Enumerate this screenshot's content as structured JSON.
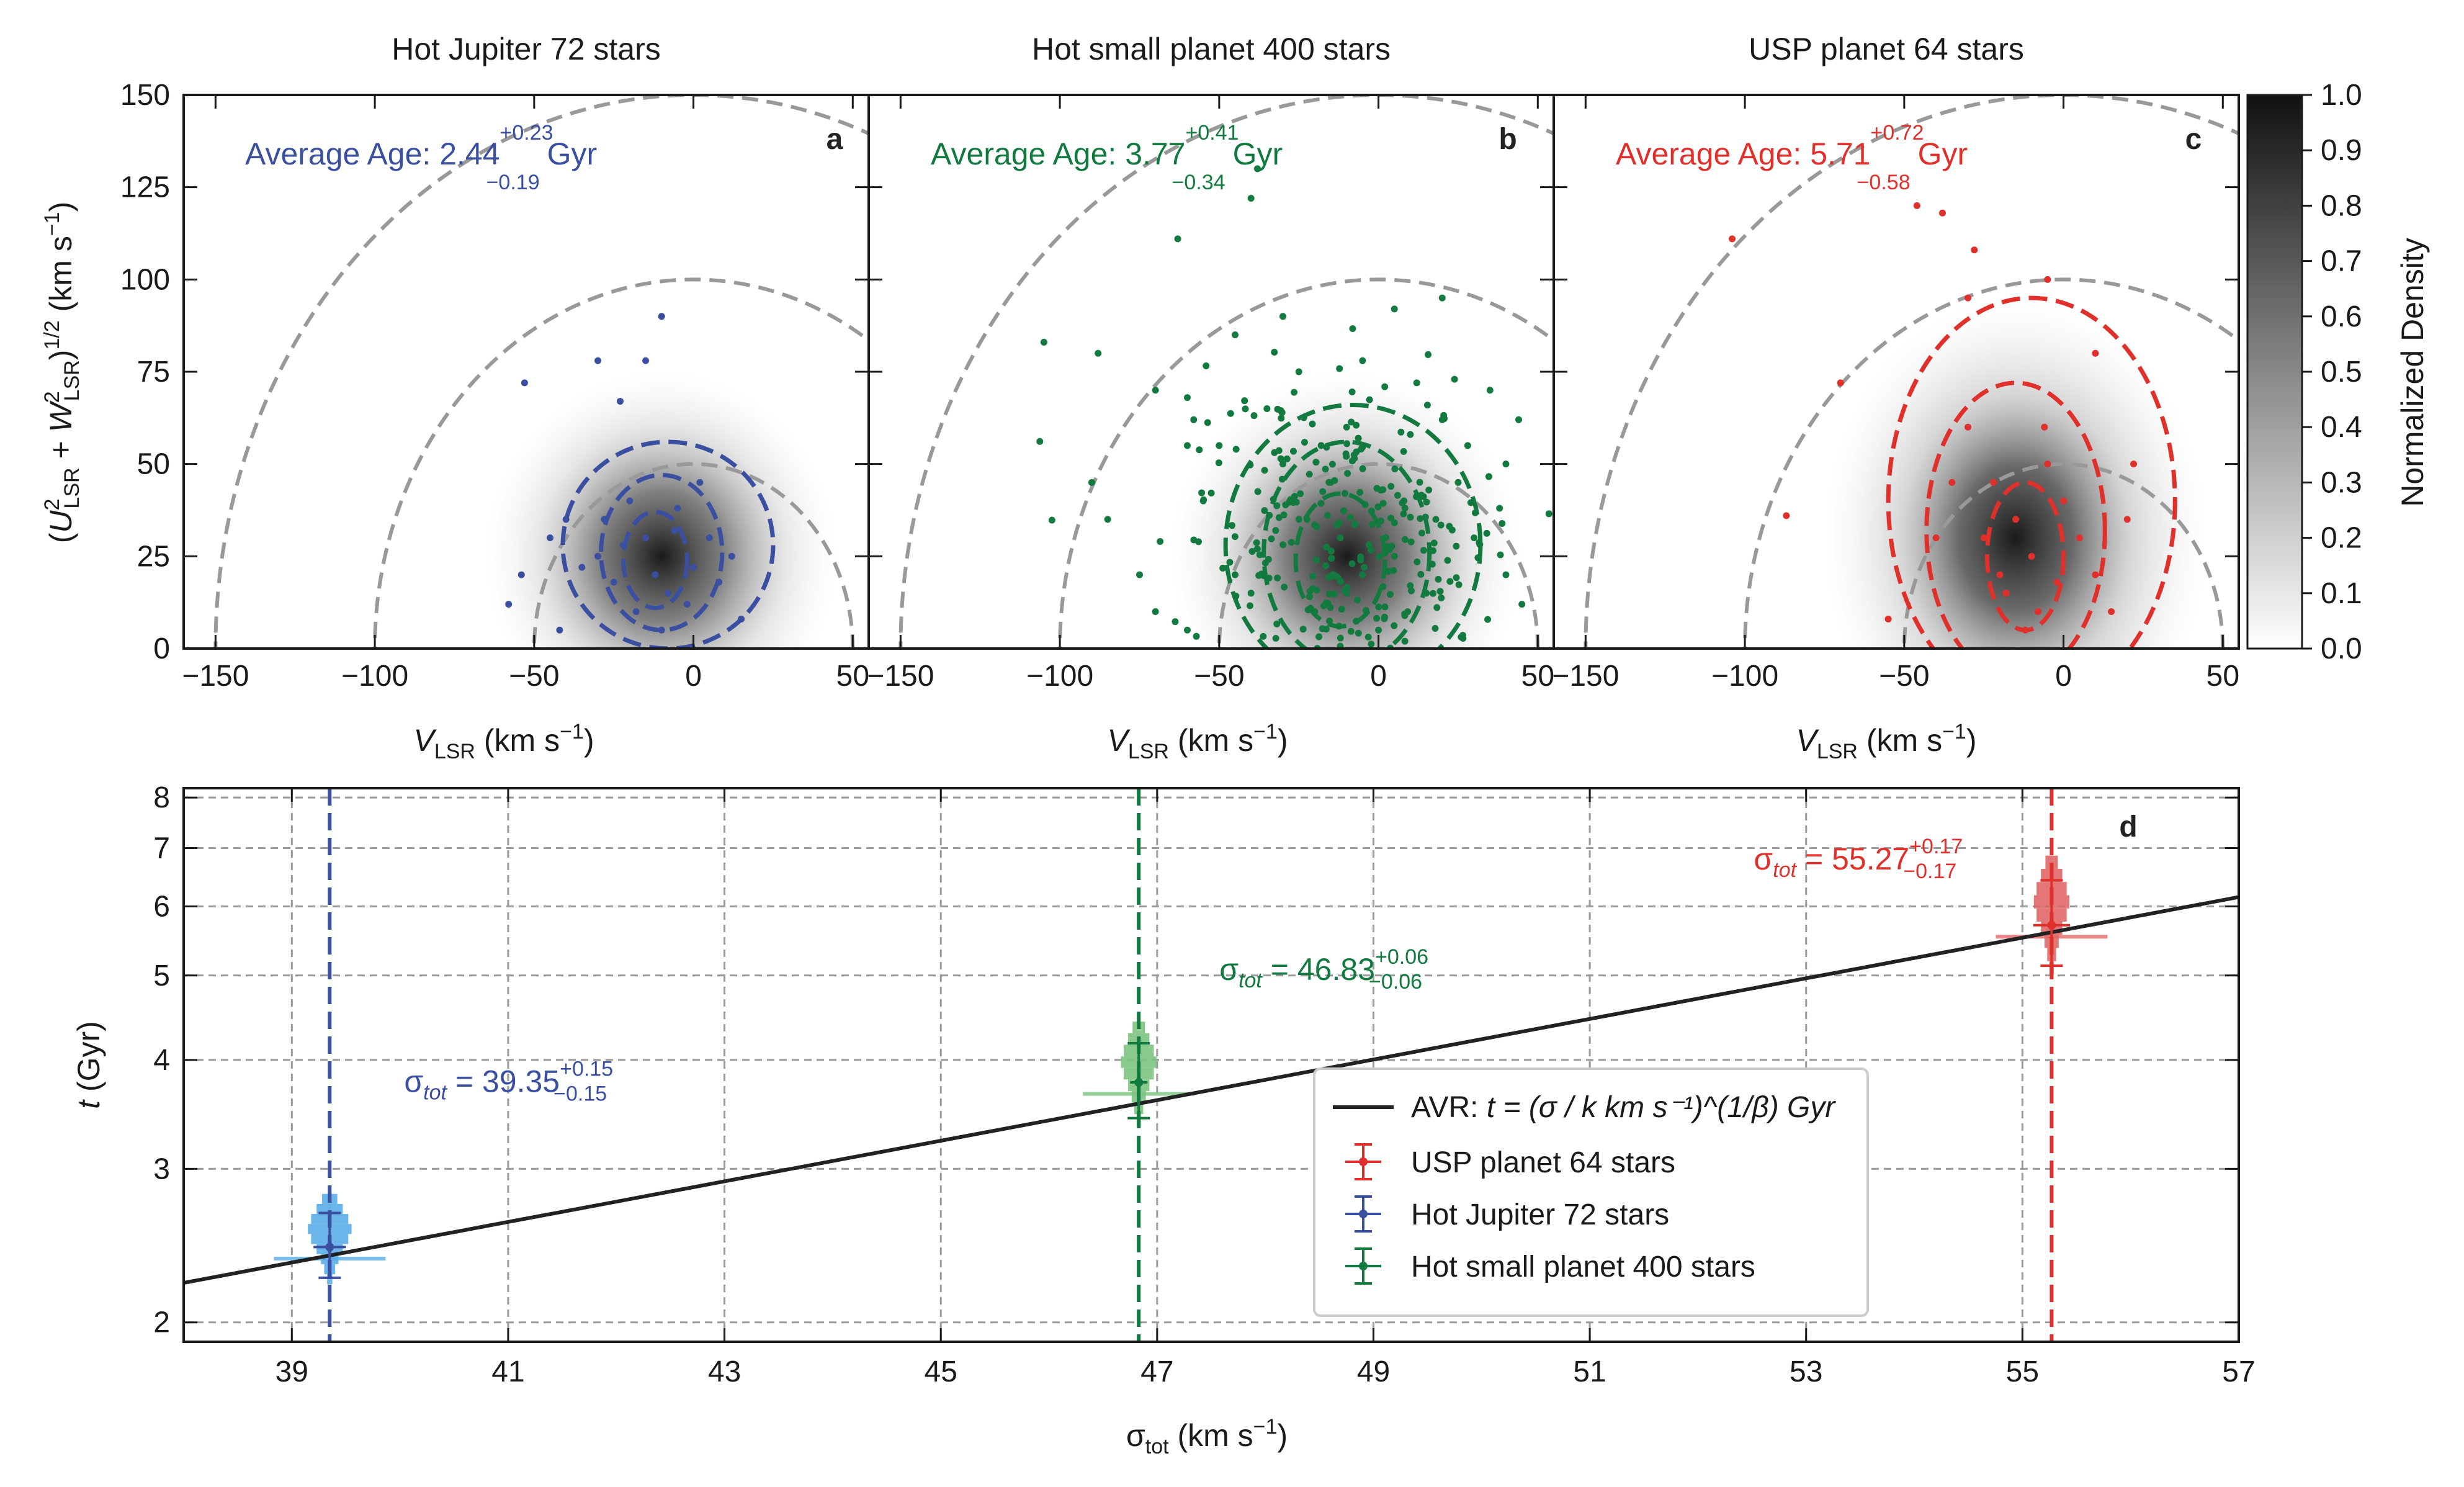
{
  "chart_data": [
    {
      "type": "scatter",
      "panel": "a",
      "title": "Hot Jupiter 72 stars",
      "xlabel": "V_LSR (km s^-1)",
      "ylabel": "(U^2_LSR + W^2_LSR)^1/2 (km s^-1)",
      "xlim": [
        -160,
        55
      ],
      "ylim": [
        0,
        150
      ],
      "xticks": [
        -150,
        -100,
        -50,
        0,
        50
      ],
      "yticks": [
        0,
        25,
        50,
        75,
        100,
        125,
        150
      ],
      "color": "#3b4fa0",
      "annotation": {
        "prefix": "Average Age: ",
        "value": "2.44",
        "plus": "+0.23",
        "minus": "−0.19",
        "unit": "Gyr"
      },
      "density_center": [
        -10,
        25
      ],
      "contours": [
        [
          -12,
          24,
          10,
          13
        ],
        [
          -10,
          26,
          19,
          21
        ],
        [
          -8,
          28,
          33,
          28
        ]
      ],
      "points": [
        [
          -10,
          90
        ],
        [
          -53,
          72
        ],
        [
          -30,
          78
        ],
        [
          -15,
          78
        ],
        [
          -23,
          67
        ],
        [
          -54,
          20
        ],
        [
          -58,
          12
        ],
        [
          -45,
          30
        ],
        [
          -40,
          35
        ],
        [
          -30,
          25
        ],
        [
          -20,
          40
        ],
        [
          -15,
          30
        ],
        [
          -12,
          20
        ],
        [
          -8,
          15
        ],
        [
          -5,
          38
        ],
        [
          0,
          22
        ],
        [
          5,
          30
        ],
        [
          -25,
          18
        ],
        [
          -18,
          10
        ],
        [
          -2,
          12
        ],
        [
          8,
          18
        ],
        [
          12,
          25
        ],
        [
          -35,
          22
        ],
        [
          -28,
          35
        ],
        [
          2,
          45
        ],
        [
          -6,
          32
        ],
        [
          -22,
          28
        ],
        [
          15,
          8
        ],
        [
          -42,
          5
        ],
        [
          -10,
          5
        ]
      ]
    },
    {
      "type": "scatter",
      "panel": "b",
      "title": "Hot small planet 400 stars",
      "xlabel": "V_LSR (km s^-1)",
      "xlim": [
        -160,
        55
      ],
      "ylim": [
        0,
        150
      ],
      "xticks": [
        -150,
        -100,
        -50,
        0,
        50
      ],
      "yticks": [
        0,
        25,
        50,
        75,
        100,
        125,
        150
      ],
      "color": "#127a3f",
      "annotation": {
        "prefix": "Average Age: ",
        "value": "3.77",
        "plus": "+0.41",
        "minus": "−0.34",
        "unit": "Gyr"
      },
      "density_center": [
        -10,
        25
      ],
      "contours": [
        [
          -12,
          24,
          14,
          18
        ],
        [
          -10,
          26,
          26,
          30
        ],
        [
          -8,
          28,
          40,
          38
        ]
      ],
      "points": [
        [
          -38,
          130
        ],
        [
          -40,
          122
        ],
        [
          -63,
          111
        ],
        [
          -105,
          83
        ],
        [
          -88,
          80
        ],
        [
          -70,
          70
        ],
        [
          -60,
          68
        ],
        [
          -58,
          62
        ],
        [
          20,
          95
        ],
        [
          5,
          92
        ],
        [
          -30,
          90
        ],
        [
          -45,
          85
        ],
        [
          35,
          70
        ],
        [
          44,
          62
        ],
        [
          40,
          50
        ],
        [
          -90,
          45
        ],
        [
          -85,
          35
        ],
        [
          -60,
          55
        ],
        [
          -50,
          55
        ],
        [
          -10,
          60
        ],
        [
          10,
          58
        ],
        [
          28,
          55
        ],
        [
          -25,
          75
        ],
        [
          -5,
          78
        ],
        [
          12,
          72
        ],
        [
          -35,
          65
        ],
        [
          30,
          30
        ],
        [
          40,
          20
        ],
        [
          45,
          12
        ],
        [
          -75,
          20
        ],
        [
          -70,
          10
        ],
        [
          -60,
          5
        ],
        [
          -55,
          40
        ],
        [
          25,
          45
        ],
        [
          18,
          35
        ],
        [
          -15,
          45
        ],
        [
          -20,
          10
        ],
        [
          0,
          5
        ],
        [
          8,
          40
        ],
        [
          -40,
          15
        ],
        [
          -5,
          20
        ],
        [
          5,
          25
        ],
        [
          -12,
          30
        ],
        [
          -25,
          35
        ],
        [
          15,
          15
        ],
        [
          -30,
          50
        ],
        [
          20,
          62
        ],
        [
          -45,
          20
        ],
        [
          38,
          38
        ],
        [
          -18,
          55
        ]
      ],
      "cloud": {
        "cx": -10,
        "cy": 28,
        "sx": 22,
        "sy": 20,
        "n": 260,
        "seed": 7
      }
    },
    {
      "type": "scatter",
      "panel": "c",
      "title": "USP planet 64 stars",
      "xlabel": "V_LSR (km s^-1)",
      "xlim": [
        -160,
        55
      ],
      "ylim": [
        0,
        150
      ],
      "xticks": [
        -150,
        -100,
        -50,
        0,
        50
      ],
      "yticks": [
        0,
        25,
        50,
        75,
        100,
        125,
        150
      ],
      "color": "#e0302b",
      "colorbar": {
        "label": "Normalized Density",
        "ticks": [
          "0.0",
          "0.1",
          "0.2",
          "0.3",
          "0.4",
          "0.5",
          "0.6",
          "0.7",
          "0.8",
          "0.9",
          "1.0"
        ]
      },
      "annotation": {
        "prefix": "Average Age: ",
        "value": "5.71",
        "plus": "+0.72",
        "minus": "−0.58",
        "unit": "Gyr"
      },
      "density_center": [
        -15,
        30
      ],
      "contours": [
        [
          -12,
          25,
          12,
          20
        ],
        [
          -15,
          32,
          28,
          40
        ],
        [
          -10,
          40,
          45,
          55
        ]
      ],
      "points": [
        [
          -104,
          111
        ],
        [
          -46,
          120
        ],
        [
          -38,
          118
        ],
        [
          -28,
          108
        ],
        [
          -30,
          95
        ],
        [
          -5,
          100
        ],
        [
          10,
          80
        ],
        [
          -70,
          72
        ],
        [
          -87,
          36
        ],
        [
          -55,
          8
        ],
        [
          -35,
          45
        ],
        [
          -25,
          30
        ],
        [
          -20,
          20
        ],
        [
          -15,
          35
        ],
        [
          -10,
          25
        ],
        [
          -5,
          50
        ],
        [
          0,
          40
        ],
        [
          5,
          30
        ],
        [
          -18,
          15
        ],
        [
          -8,
          10
        ],
        [
          10,
          20
        ],
        [
          20,
          35
        ],
        [
          22,
          50
        ],
        [
          -30,
          60
        ],
        [
          -40,
          30
        ],
        [
          -12,
          5
        ],
        [
          -2,
          18
        ],
        [
          15,
          10
        ],
        [
          -22,
          45
        ],
        [
          -6,
          60
        ]
      ]
    },
    {
      "type": "scatter",
      "panel": "d",
      "xlabel": "σtot (km s^-1)",
      "ylabel": "t (Gyr)",
      "xlim": [
        38,
        57
      ],
      "ylim": [
        1.9,
        8.2
      ],
      "yscale": "log",
      "xticks": [
        39,
        41,
        43,
        45,
        47,
        49,
        51,
        53,
        55,
        57
      ],
      "yticks": [
        2,
        3,
        4,
        5,
        6,
        7,
        8
      ],
      "avr_line": {
        "x": [
          38,
          57
        ],
        "y": [
          2.22,
          6.15
        ]
      },
      "series": [
        {
          "name": "USP planet 64 stars",
          "color": "#e0302b",
          "hist_color": "#e06868",
          "sigma": 55.27,
          "sigma_err": 0.17,
          "age": 5.71,
          "age_plus": 0.72,
          "age_minus": 0.58,
          "label": {
            "value": "55.27",
            "plus": "+0.17",
            "minus": "−0.17"
          }
        },
        {
          "name": "Hot Jupiter 72 stars",
          "color": "#3b4fa0",
          "hist_color": "#5aaee8",
          "sigma": 39.35,
          "sigma_err": 0.15,
          "age": 2.44,
          "age_plus": 0.23,
          "age_minus": 0.19,
          "label": {
            "value": "39.35",
            "plus": "+0.15",
            "minus": "−0.15"
          }
        },
        {
          "name": "Hot small planet 400 stars",
          "color": "#127a3f",
          "hist_color": "#7cc47f",
          "sigma": 46.83,
          "sigma_err": 0.06,
          "age": 3.77,
          "age_plus": 0.41,
          "age_minus": 0.34,
          "label": {
            "value": "46.83",
            "plus": "+0.06",
            "minus": "−0.06"
          }
        }
      ],
      "legend": {
        "avr_prefix": "AVR: ",
        "avr_formula": "t = (σ / k km s⁻¹)^(1/β) Gyr",
        "placement": "lower-right"
      },
      "panel_label": "d"
    }
  ],
  "sigma_symbol": "σ",
  "tot_sub": "tot"
}
